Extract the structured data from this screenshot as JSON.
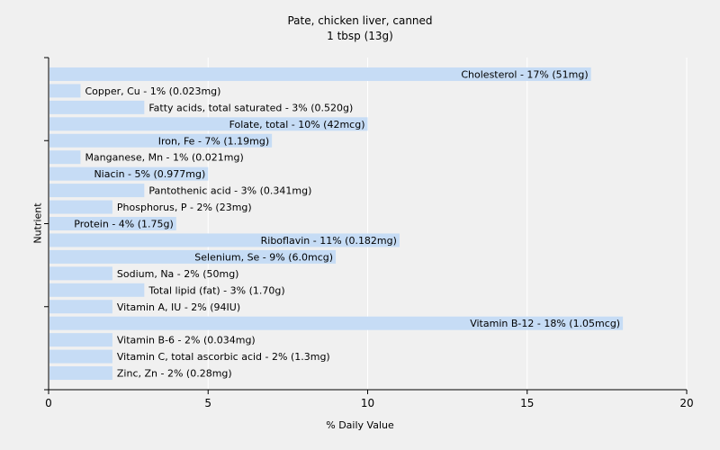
{
  "chart_data": {
    "type": "bar",
    "orientation": "horizontal",
    "title": "Pate, chicken liver, canned",
    "subtitle": "1 tbsp (13g)",
    "xlabel": "% Daily Value",
    "ylabel": "Nutrient",
    "xlim": [
      0,
      20
    ],
    "xticks": [
      0,
      5,
      10,
      15,
      20
    ],
    "grid": true,
    "bar_color": "#c6dcf5",
    "categories": [
      "Cholesterol",
      "Copper, Cu",
      "Fatty acids, total saturated",
      "Folate, total",
      "Iron, Fe",
      "Manganese, Mn",
      "Niacin",
      "Pantothenic acid",
      "Phosphorus, P",
      "Protein",
      "Riboflavin",
      "Selenium, Se",
      "Sodium, Na",
      "Total lipid (fat)",
      "Vitamin A, IU",
      "Vitamin B-12",
      "Vitamin B-6",
      "Vitamin C, total ascorbic acid",
      "Zinc, Zn"
    ],
    "values": [
      17,
      1,
      3,
      10,
      7,
      1,
      5,
      3,
      2,
      4,
      11,
      9,
      2,
      3,
      2,
      18,
      2,
      2,
      2
    ],
    "labels": [
      "Cholesterol - 17% (51mg)",
      "Copper, Cu - 1% (0.023mg)",
      "Fatty acids, total saturated - 3% (0.520g)",
      "Folate, total - 10% (42mcg)",
      "Iron, Fe - 7% (1.19mg)",
      "Manganese, Mn - 1% (0.021mg)",
      "Niacin - 5% (0.977mg)",
      "Pantothenic acid - 3% (0.341mg)",
      "Phosphorus, P - 2% (23mg)",
      "Protein - 4% (1.75g)",
      "Riboflavin - 11% (0.182mg)",
      "Selenium, Se - 9% (6.0mcg)",
      "Sodium, Na - 2% (50mg)",
      "Total lipid (fat) - 3% (1.70g)",
      "Vitamin A, IU - 2% (94IU)",
      "Vitamin B-12 - 18% (1.05mcg)",
      "Vitamin B-6 - 2% (0.034mg)",
      "Vitamin C, total ascorbic acid - 2% (1.3mg)",
      "Zinc, Zn - 2% (0.28mg)"
    ]
  }
}
